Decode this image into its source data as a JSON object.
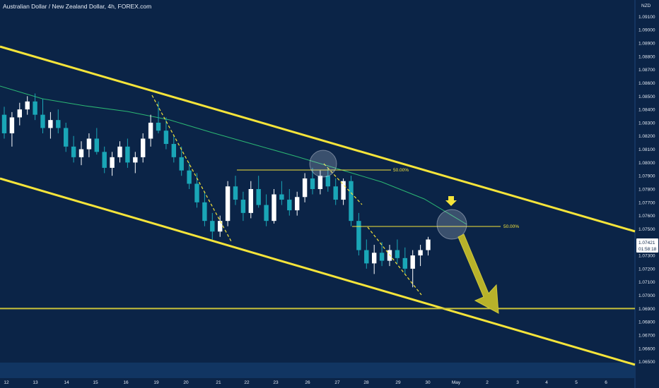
{
  "header": {
    "title": "Australian Dollar / New Zealand Dollar, 4h, FOREX.com"
  },
  "colors": {
    "background": "#0b2447",
    "bull": "#ffffff",
    "bear": "#1aa6b7",
    "ma": "#2bb673",
    "channel": "#f5e43a",
    "support": "#c9c23a",
    "arrow": "#b8b22a",
    "timeBand": "#113562"
  },
  "chart_data": {
    "type": "candlestick",
    "title": "Australian Dollar / New Zealand Dollar, 4h, FOREX.com",
    "ylabel": "NZD",
    "ylim": [
      1.0645,
      1.0915
    ],
    "y_ticks": [
      "1.09100",
      "1.09000",
      "1.08900",
      "1.08800",
      "1.08700",
      "1.08600",
      "1.08500",
      "1.08400",
      "1.08300",
      "1.08200",
      "1.08100",
      "1.08000",
      "1.07900",
      "1.07800",
      "1.07700",
      "1.07600",
      "1.07500",
      "1.07300",
      "1.07200",
      "1.07100",
      "1.07000",
      "1.06900",
      "1.06800",
      "1.06700",
      "1.06600",
      "1.06500"
    ],
    "x_ticks": [
      "12",
      "13",
      "14",
      "15",
      "16",
      "19",
      "20",
      "21",
      "22",
      "23",
      "26",
      "27",
      "28",
      "29",
      "30",
      "May",
      "2",
      "3",
      "4",
      "5",
      "6"
    ],
    "current_price": "1.07421",
    "countdown": "01:58:18",
    "fib_labels": [
      "50.00%",
      "50.00%"
    ],
    "support_level": 1.069,
    "grid": false,
    "series": [
      {
        "values": [
          [
            1.0836,
            1.0842,
            1.0818,
            1.0822
          ],
          [
            1.0822,
            1.0838,
            1.0812,
            1.0834
          ],
          [
            1.0834,
            1.0845,
            1.0828,
            1.084
          ],
          [
            1.084,
            1.085,
            1.0836,
            1.0846
          ],
          [
            1.0846,
            1.0852,
            1.0832,
            1.0836
          ],
          [
            1.0836,
            1.0848,
            1.0822,
            1.0826
          ],
          [
            1.0826,
            1.0838,
            1.0818,
            1.0832
          ],
          [
            1.0832,
            1.084,
            1.0822,
            1.0826
          ],
          [
            1.0826,
            1.083,
            1.0808,
            1.0812
          ],
          [
            1.0812,
            1.082,
            1.08,
            1.0804
          ],
          [
            1.0804,
            1.0816,
            1.0798,
            1.081
          ],
          [
            1.081,
            1.0822,
            1.0804,
            1.0818
          ],
          [
            1.0818,
            1.0826,
            1.0806,
            1.0808
          ],
          [
            1.0808,
            1.0812,
            1.0792,
            1.0796
          ],
          [
            1.0796,
            1.0808,
            1.079,
            1.0804
          ],
          [
            1.0804,
            1.0816,
            1.08,
            1.0812
          ],
          [
            1.0812,
            1.0818,
            1.0796,
            1.08
          ],
          [
            1.08,
            1.0808,
            1.0792,
            1.0804
          ],
          [
            1.0804,
            1.0822,
            1.08,
            1.0818
          ],
          [
            1.0818,
            1.0836,
            1.0812,
            1.083
          ],
          [
            1.083,
            1.0846,
            1.0822,
            1.0824
          ],
          [
            1.0824,
            1.0834,
            1.081,
            1.0814
          ],
          [
            1.0814,
            1.082,
            1.08,
            1.0804
          ],
          [
            1.0804,
            1.0812,
            1.079,
            1.0794
          ],
          [
            1.0794,
            1.08,
            1.078,
            1.0784
          ],
          [
            1.0784,
            1.0792,
            1.0766,
            1.077
          ],
          [
            1.077,
            1.0778,
            1.0752,
            1.0756
          ],
          [
            1.0756,
            1.0762,
            1.0742,
            1.0748
          ],
          [
            1.0748,
            1.076,
            1.0744,
            1.0756
          ],
          [
            1.0756,
            1.0786,
            1.0752,
            1.0782
          ],
          [
            1.0782,
            1.079,
            1.0768,
            1.0772
          ],
          [
            1.0772,
            1.0778,
            1.0756,
            1.0762
          ],
          [
            1.0762,
            1.0786,
            1.0758,
            1.078
          ],
          [
            1.078,
            1.079,
            1.0766,
            1.0768
          ],
          [
            1.0768,
            1.0776,
            1.0752,
            1.0756
          ],
          [
            1.0756,
            1.078,
            1.0754,
            1.0776
          ],
          [
            1.0776,
            1.0786,
            1.0768,
            1.0772
          ],
          [
            1.0772,
            1.078,
            1.076,
            1.0764
          ],
          [
            1.0764,
            1.0778,
            1.076,
            1.0774
          ],
          [
            1.0774,
            1.0792,
            1.077,
            1.0788
          ],
          [
            1.0788,
            1.0796,
            1.0776,
            1.078
          ],
          [
            1.078,
            1.0794,
            1.0776,
            1.079
          ],
          [
            1.079,
            1.0796,
            1.0778,
            1.0782
          ],
          [
            1.0782,
            1.0788,
            1.0768,
            1.0772
          ],
          [
            1.0772,
            1.0788,
            1.0768,
            1.0786
          ],
          [
            1.0786,
            1.079,
            1.0752,
            1.0756
          ],
          [
            1.0756,
            1.0762,
            1.073,
            1.0734
          ],
          [
            1.0734,
            1.0742,
            1.072,
            1.0724
          ],
          [
            1.0724,
            1.0738,
            1.0716,
            1.0732
          ],
          [
            1.0732,
            1.074,
            1.0722,
            1.0726
          ],
          [
            1.0726,
            1.0738,
            1.0722,
            1.0734
          ],
          [
            1.0734,
            1.0742,
            1.0724,
            1.0728
          ],
          [
            1.0728,
            1.0736,
            1.0716,
            1.072
          ],
          [
            1.072,
            1.0734,
            1.0706,
            1.073
          ],
          [
            1.073,
            1.0738,
            1.0722,
            1.0734
          ],
          [
            1.0734,
            1.0744,
            1.073,
            1.0742
          ]
        ]
      }
    ]
  }
}
